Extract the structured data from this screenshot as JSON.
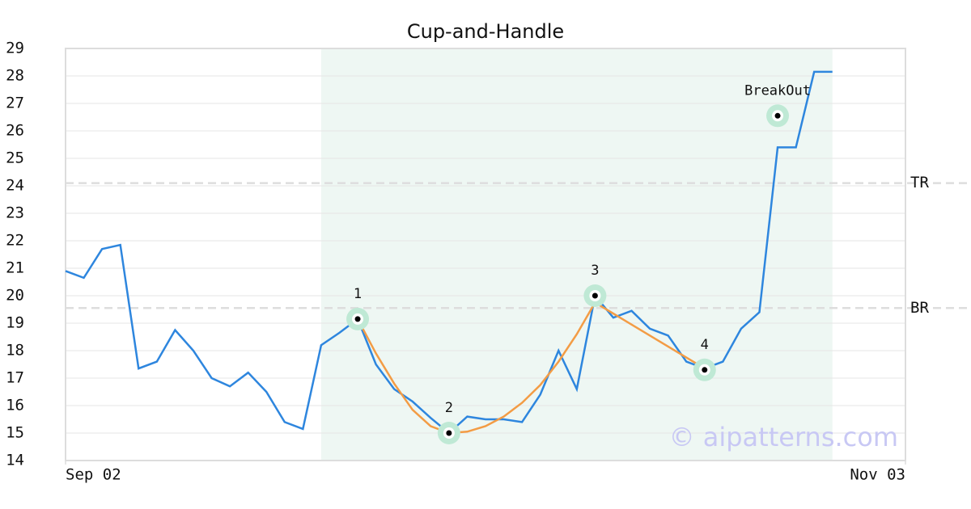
{
  "chart_data": {
    "type": "line",
    "title": "Cup-and-Handle",
    "x": [
      0,
      1,
      2,
      3,
      4,
      5,
      6,
      7,
      8,
      9,
      10,
      11,
      12,
      13,
      14,
      15,
      16,
      17,
      18,
      19,
      20,
      21,
      22,
      23,
      24,
      25,
      26,
      27,
      28,
      29,
      30,
      31,
      32,
      33,
      34,
      35,
      36,
      37,
      38,
      39,
      40,
      41,
      42
    ],
    "xlim": [
      0,
      46
    ],
    "xticks": [
      {
        "value": 0,
        "label": "Sep 02"
      },
      {
        "value": 46,
        "label": "Nov 03"
      }
    ],
    "ylim": [
      14,
      29
    ],
    "yticks": [
      14,
      15,
      16,
      17,
      18,
      19,
      20,
      21,
      22,
      23,
      24,
      25,
      26,
      27,
      28,
      29
    ],
    "grid": true,
    "highlight": [
      14,
      42
    ],
    "series": [
      {
        "color": "#2e86de",
        "values": [
          20.9,
          20.65,
          21.7,
          21.85,
          17.35,
          17.6,
          18.75,
          18.0,
          17.0,
          16.7,
          17.2,
          16.5,
          15.4,
          15.15,
          18.2,
          18.65,
          19.15,
          17.5,
          16.6,
          16.15,
          15.55,
          15.0,
          15.6,
          15.5,
          15.5,
          15.4,
          16.4,
          18.0,
          16.6,
          20.0,
          19.2,
          19.45,
          18.8,
          18.55,
          17.6,
          17.35,
          17.6,
          18.8,
          19.4,
          25.4,
          25.4,
          28.15,
          28.15
        ]
      },
      {
        "color": "#f39c45",
        "x": [
          16,
          17,
          18,
          19,
          20,
          21,
          22,
          23,
          24,
          25,
          26,
          27,
          28,
          29,
          35
        ],
        "values": [
          19.15,
          17.9,
          16.8,
          15.85,
          15.25,
          15.0,
          15.05,
          15.25,
          15.6,
          16.1,
          16.75,
          17.6,
          18.6,
          19.75,
          17.35
        ]
      }
    ],
    "points": [
      {
        "label": "1",
        "x": 16,
        "y": 19.15
      },
      {
        "label": "2",
        "x": 21,
        "y": 15.0
      },
      {
        "label": "3",
        "x": 29,
        "y": 20.0
      },
      {
        "label": "4",
        "x": 35,
        "y": 17.3
      },
      {
        "label": "BreakOut",
        "x": 39,
        "y": 26.55
      }
    ],
    "levels": [
      {
        "label": "TR",
        "value": 24.1
      },
      {
        "label": "BR",
        "value": 19.55
      }
    ],
    "watermark": "© aipatterns.com"
  }
}
